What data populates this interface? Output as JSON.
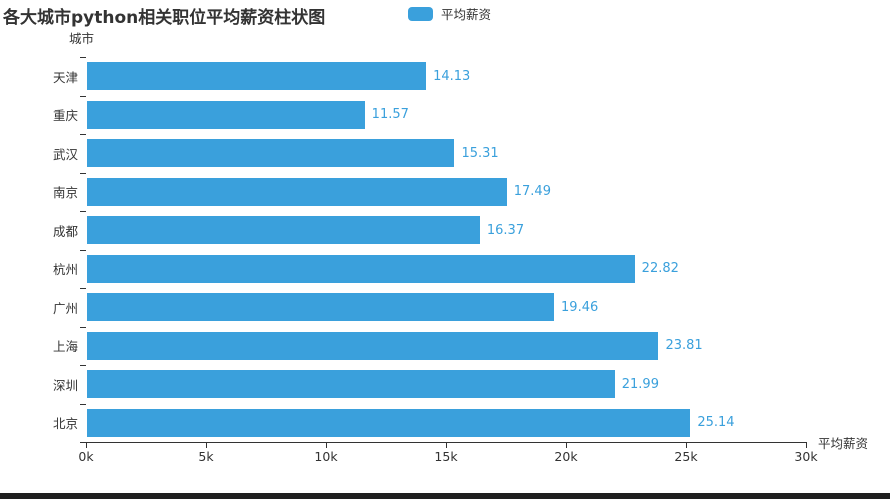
{
  "title": "各大城市python相关职位平均薪资柱状图",
  "legend": {
    "label": "平均薪资",
    "swatch_color": "#3AA0DC"
  },
  "y_axis_name": "城市",
  "x_axis_name": "平均薪资",
  "footer_color": "#1f1f1f",
  "chart_data": {
    "type": "bar",
    "orientation": "horizontal",
    "title": "各大城市python相关职位平均薪资柱状图",
    "series_name": "平均薪资",
    "xlabel": "平均薪资",
    "ylabel": "城市",
    "categories": [
      "天津",
      "重庆",
      "武汉",
      "南京",
      "成都",
      "杭州",
      "广州",
      "上海",
      "深圳",
      "北京"
    ],
    "values": [
      14.13,
      11.57,
      15.31,
      17.49,
      16.37,
      22.82,
      19.46,
      23.81,
      21.99,
      25.14
    ],
    "value_labels": [
      "14.13",
      "11.57",
      "15.31",
      "17.49",
      "16.37",
      "22.82",
      "19.46",
      "23.81",
      "21.99",
      "25.14"
    ],
    "xlim": [
      0,
      30
    ],
    "x_tick_labels": [
      "0k",
      "5k",
      "10k",
      "15k",
      "20k",
      "25k",
      "30k"
    ],
    "bar_color": "#3AA0DC",
    "value_label_color": "#3AA0DC",
    "axis_color": "#333333",
    "legend_position": "top",
    "grid": false
  }
}
